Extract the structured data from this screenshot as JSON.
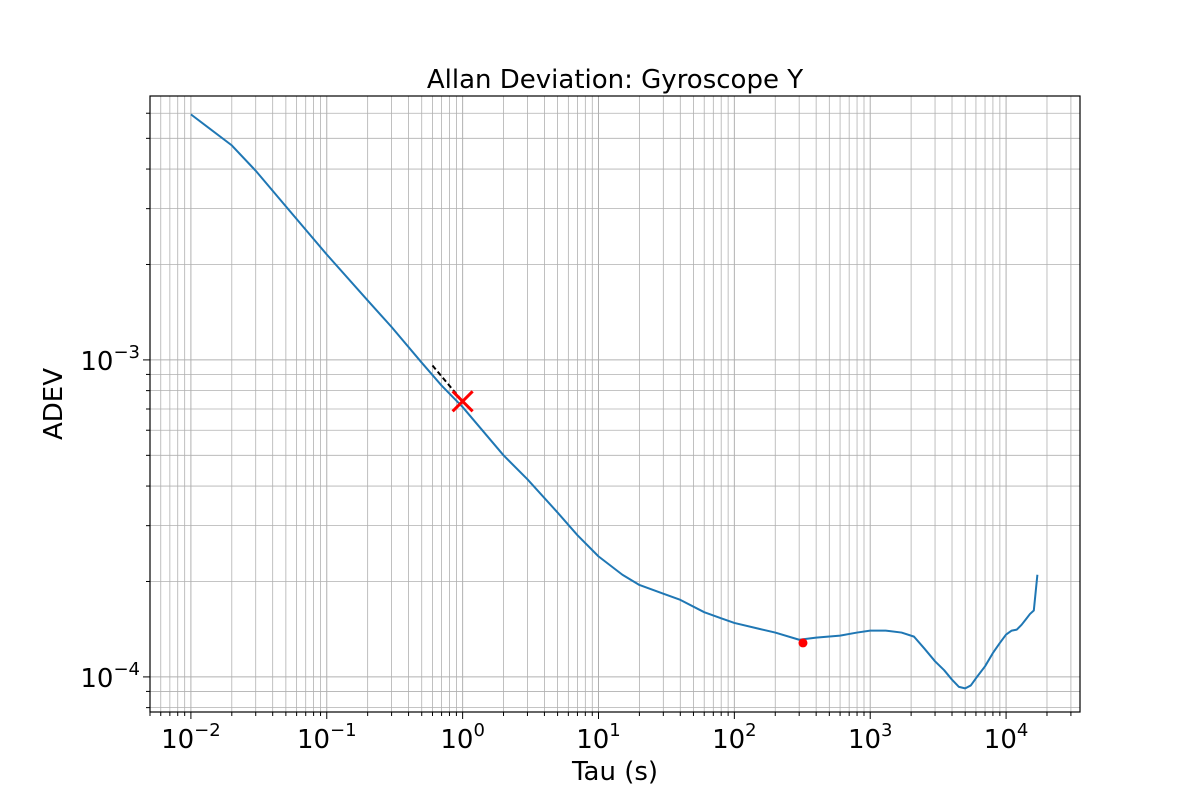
{
  "chart_data": {
    "type": "line",
    "title": "Allan Deviation: Gyroscope Y",
    "xlabel": "Tau (s)",
    "ylabel": "ADEV",
    "x_scale": "log",
    "y_scale": "log",
    "xlim": [
      0.005,
      35000
    ],
    "ylim": [
      7.75e-05,
      0.0068
    ],
    "grid": true,
    "grid_minor": true,
    "x_ticks": [
      {
        "value": 0.01,
        "base": "10",
        "exp": "−2"
      },
      {
        "value": 0.1,
        "base": "10",
        "exp": "−1"
      },
      {
        "value": 1,
        "base": "10",
        "exp": "0"
      },
      {
        "value": 10,
        "base": "10",
        "exp": "1"
      },
      {
        "value": 100,
        "base": "10",
        "exp": "2"
      },
      {
        "value": 1000,
        "base": "10",
        "exp": "3"
      },
      {
        "value": 10000,
        "base": "10",
        "exp": "4"
      }
    ],
    "y_ticks": [
      {
        "value": 0.0001,
        "base": "10",
        "exp": "−4"
      },
      {
        "value": 0.001,
        "base": "10",
        "exp": "−3"
      }
    ],
    "series": [
      {
        "color": "#1f77b4",
        "x": [
          0.01,
          0.02,
          0.03,
          0.05,
          0.1,
          0.2,
          0.3,
          0.5,
          0.7,
          1,
          2,
          3,
          5,
          7,
          10,
          15,
          20,
          30,
          40,
          60,
          80,
          100,
          150,
          200,
          300,
          400,
          600,
          800,
          1000,
          1300,
          1700,
          2100,
          2500,
          3000,
          3500,
          4000,
          4500,
          5000,
          5500,
          6000,
          7000,
          8000,
          9000,
          10000,
          11000,
          12000,
          13000,
          14000,
          15000,
          16000,
          17000
        ],
        "y": [
          0.00595,
          0.00475,
          0.00395,
          0.00305,
          0.00215,
          0.00154,
          0.00127,
          0.00098,
          0.00083,
          0.00071,
          0.0005,
          0.00042,
          0.00033,
          0.00028,
          0.00024,
          0.00021,
          0.000195,
          0.000183,
          0.000175,
          0.00016,
          0.000153,
          0.000148,
          0.000142,
          0.000138,
          0.000131,
          0.000133,
          0.000135,
          0.000138,
          0.00014,
          0.00014,
          0.000138,
          0.000134,
          0.000123,
          0.000112,
          0.000105,
          9.8e-05,
          9.3e-05,
          9.2e-05,
          9.4e-05,
          9.9e-05,
          0.000108,
          0.000119,
          0.000128,
          0.000136,
          0.00014,
          0.000141,
          0.000146,
          0.000152,
          0.000158,
          0.000162,
          0.00021
        ]
      },
      {
        "color": "#000000",
        "style": "dashed",
        "x": [
          0.6,
          1.0
        ],
        "y": [
          0.00096,
          0.00074
        ]
      }
    ],
    "markers": [
      {
        "shape": "x",
        "color": "#ff0000",
        "x": 1.0,
        "y": 0.00074
      },
      {
        "shape": "dot",
        "color": "#ff0000",
        "x": 320,
        "y": 0.000128
      }
    ]
  }
}
